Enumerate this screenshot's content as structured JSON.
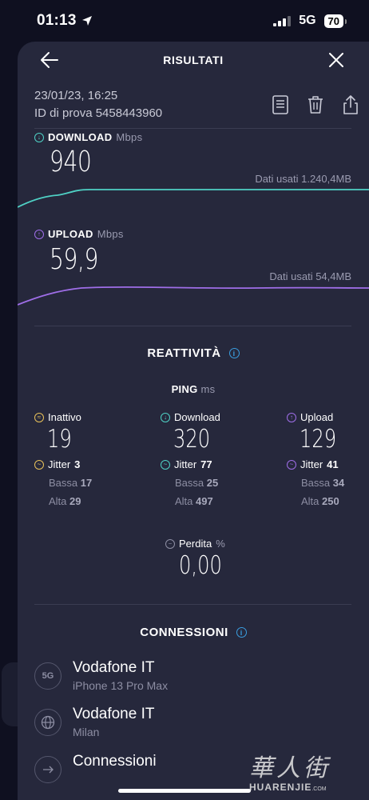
{
  "status": {
    "time": "01:13",
    "network": "5G",
    "battery": "70"
  },
  "header": {
    "title": "RISULTATI"
  },
  "meta": {
    "date": "23/01/23, 16:25",
    "test_id": "ID di prova 5458443960"
  },
  "download": {
    "label": "DOWNLOAD",
    "unit": "Mbps",
    "value": "940",
    "data_used": "Dati usati 1.240,4MB",
    "color": "#4fd1c5"
  },
  "upload": {
    "label": "UPLOAD",
    "unit": "Mbps",
    "value": "59,9",
    "data_used": "Dati usati 54,4MB",
    "color": "#9f6ee8"
  },
  "responsiveness": {
    "title": "REATTIVITÀ",
    "ping_label": "PING",
    "ping_unit": "ms",
    "columns": [
      {
        "label": "Inattivo",
        "value": "19",
        "jitter_label": "Jitter",
        "jitter": "3",
        "low_label": "Bassa",
        "low": "17",
        "high_label": "Alta",
        "high": "29",
        "color": "#e8c15a"
      },
      {
        "label": "Download",
        "value": "320",
        "jitter_label": "Jitter",
        "jitter": "77",
        "low_label": "Bassa",
        "low": "25",
        "high_label": "Alta",
        "high": "497",
        "color": "#4fd1c5"
      },
      {
        "label": "Upload",
        "value": "129",
        "jitter_label": "Jitter",
        "jitter": "41",
        "low_label": "Bassa",
        "low": "34",
        "high_label": "Alta",
        "high": "250",
        "color": "#9f6ee8"
      }
    ],
    "loss_label": "Perdita",
    "loss_unit": "%",
    "loss_value": "0,00"
  },
  "connections": {
    "title": "CONNESSIONI",
    "items": [
      {
        "badge": "5G",
        "name": "Vodafone IT",
        "sub": "iPhone 13 Pro Max",
        "icon": "cellular-5g-icon"
      },
      {
        "badge": "",
        "name": "Vodafone IT",
        "sub": "Milan",
        "icon": "globe-icon"
      },
      {
        "badge": "",
        "name": "Connessioni",
        "sub": "",
        "icon": "connections-icon"
      }
    ]
  },
  "watermark": {
    "glyphs": "華人街",
    "text": "HUARENJIE",
    "suffix": ".COM"
  }
}
